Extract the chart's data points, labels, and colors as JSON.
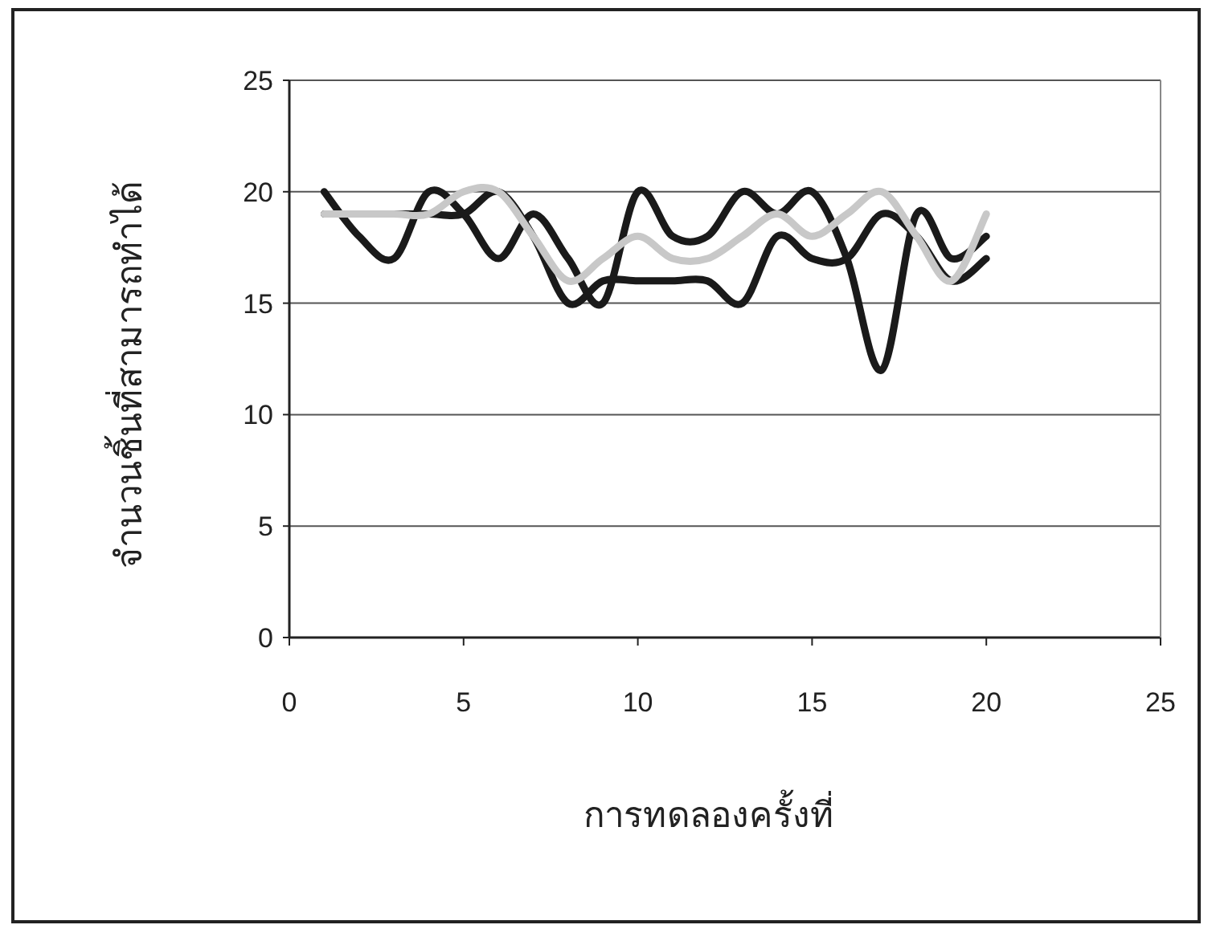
{
  "chart_data": {
    "type": "line",
    "xlabel": "การทดลองครั้งที่",
    "ylabel": "จำนวนชิ้นที่สามารถทำได้",
    "x": [
      1,
      2,
      3,
      4,
      5,
      6,
      7,
      8,
      9,
      10,
      11,
      12,
      13,
      14,
      15,
      16,
      17,
      18,
      19,
      20
    ],
    "series": [
      {
        "color": "#1a1a1a",
        "values": [
          20,
          18,
          17,
          20,
          19,
          17,
          19,
          17,
          15,
          20,
          18,
          18,
          20,
          19,
          20,
          17,
          12,
          19,
          17,
          18
        ]
      },
      {
        "color": "#1a1a1a",
        "values": [
          19,
          19,
          19,
          19,
          19,
          20,
          18,
          15,
          16,
          16,
          16,
          16,
          15,
          18,
          17,
          17,
          19,
          18,
          16,
          17
        ]
      },
      {
        "color": "#c8c8c8",
        "values": [
          19,
          19,
          19,
          19,
          20,
          20,
          18,
          16,
          17,
          18,
          17,
          17,
          18,
          19,
          18,
          19,
          20,
          18,
          16,
          19
        ]
      }
    ],
    "xlim": [
      0,
      25
    ],
    "ylim": [
      0,
      25
    ],
    "xticks": [
      0,
      5,
      10,
      15,
      20,
      25
    ],
    "yticks": [
      0,
      5,
      10,
      15,
      20,
      25
    ],
    "grid": "y"
  }
}
